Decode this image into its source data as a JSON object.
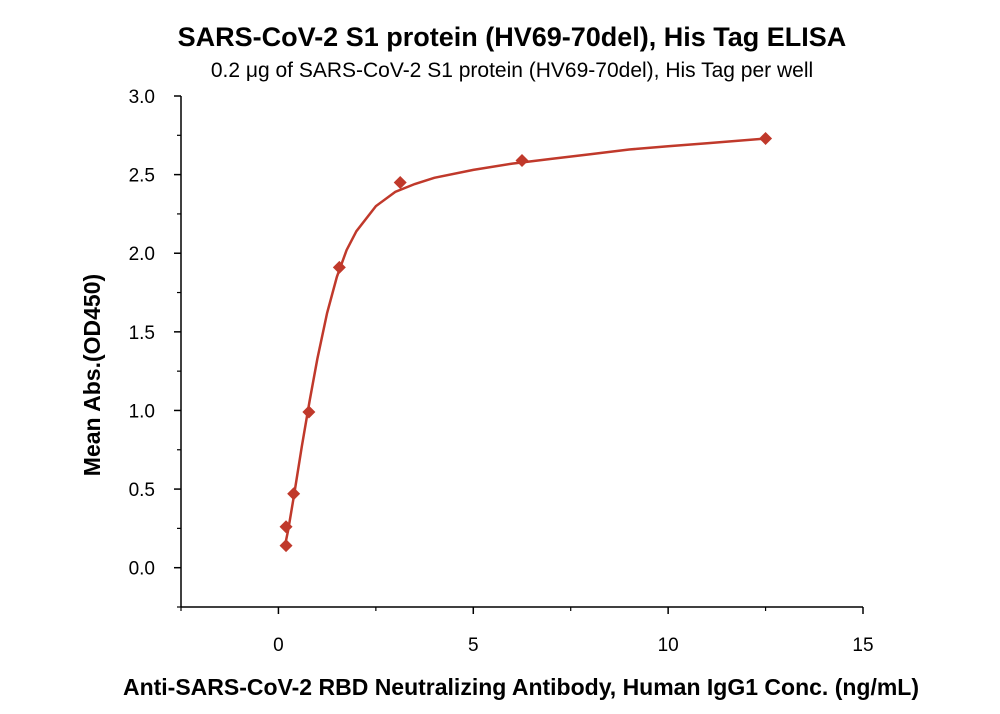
{
  "chart_data": {
    "type": "scatter",
    "title": "SARS-CoV-2 S1 protein (HV69-70del), His Tag ELISA",
    "subtitle": "0.2 μg of SARS-CoV-2 S1 protein (HV69-70del), His Tag per well",
    "xlabel": "Anti-SARS-CoV-2 RBD Neutralizing Antibody, Human IgG1 Conc. (ng/mL)",
    "ylabel": "Mean Abs.(OD450)",
    "xlim": [
      -2.5,
      15
    ],
    "ylim": [
      -0.25,
      3.0
    ],
    "x_ticks": [
      "0",
      "5",
      "10",
      "15"
    ],
    "y_ticks": [
      "0.0",
      "0.5",
      "1.0",
      "1.5",
      "2.0",
      "2.5",
      "3.0"
    ],
    "grid": false,
    "legend": "none",
    "marker": "diamond",
    "color": "#c0392b",
    "series": [
      {
        "x": [
          0.195,
          0.195,
          0.391,
          0.781,
          1.563,
          3.125,
          6.25,
          12.5
        ],
        "y": [
          0.14,
          0.26,
          0.47,
          0.99,
          1.91,
          2.45,
          2.59,
          2.73
        ]
      }
    ],
    "fit_curve": {
      "type": "sigmoidal",
      "x": [
        0.15,
        0.25,
        0.4,
        0.6,
        0.8,
        1.0,
        1.25,
        1.5,
        1.75,
        2.0,
        2.5,
        3.0,
        3.5,
        4.0,
        5.0,
        6.0,
        7.0,
        8.0,
        9.0,
        10.0,
        11.0,
        12.5
      ],
      "y": [
        0.12,
        0.24,
        0.46,
        0.77,
        1.06,
        1.33,
        1.62,
        1.85,
        2.02,
        2.14,
        2.3,
        2.39,
        2.44,
        2.48,
        2.53,
        2.57,
        2.6,
        2.63,
        2.66,
        2.68,
        2.7,
        2.73
      ]
    }
  }
}
